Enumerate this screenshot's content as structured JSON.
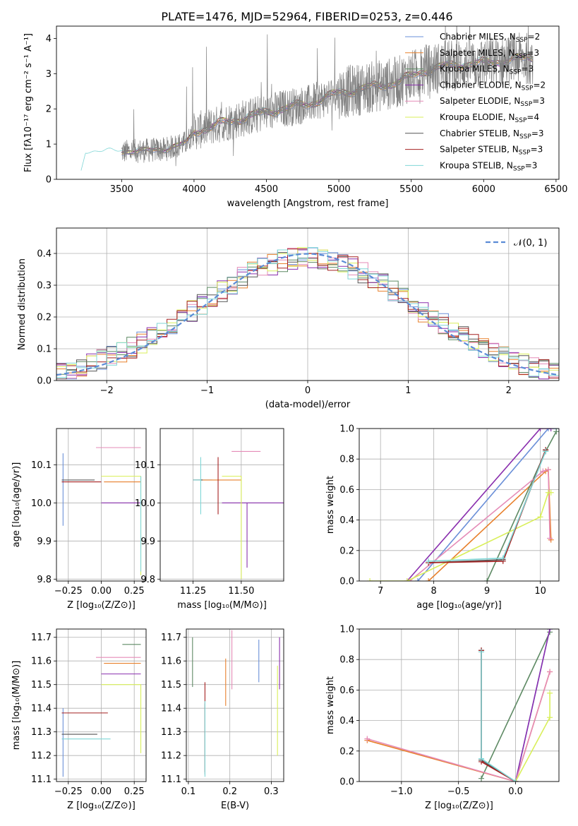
{
  "colors": [
    "#6a8fd8",
    "#e8802c",
    "#5e8a64",
    "#8a2fae",
    "#e58bb7",
    "#d9ef5a",
    "#555555",
    "#a52020",
    "#7fd6d6"
  ],
  "legend_labels": [
    "Chabrier MILES, N",
    "Salpeter MILES, N",
    "Kroupa MILES, N",
    "Chabrier ELODIE, N",
    "Salpeter ELODIE, N",
    "Kroupa ELODIE, N",
    "Chabrier STELIB, N",
    "Salpeter STELIB, N",
    "Kroupa STELIB, N"
  ],
  "chart_data": [
    {
      "type": "line",
      "title": "PLATE=1476, MJD=52964, FIBERID=0253, z=0.446",
      "xlabel": "wavelength [Angstrom, rest frame]",
      "ylabel": "Flux [fλ10⁻¹⁷ erg cm⁻² s⁻¹ A⁻¹]",
      "xlim": [
        3050,
        6520
      ],
      "ylim": [
        0,
        4.35
      ],
      "xticks": [
        "3500",
        "4000",
        "4500",
        "5000",
        "5500",
        "6000",
        "6500"
      ],
      "xtick_values": [
        3500,
        4000,
        4500,
        5000,
        5500,
        6000,
        6500
      ],
      "yticks": [
        "0",
        "1",
        "2",
        "3",
        "4"
      ],
      "ytick_values": [
        0,
        1,
        2,
        3,
        4
      ],
      "legend_subscript": "SSP",
      "legend": [
        {
          "nssp": "=2"
        },
        {
          "nssp": "=3"
        },
        {
          "nssp": "=3"
        },
        {
          "nssp": "=2"
        },
        {
          "nssp": "=3"
        },
        {
          "nssp": "=4"
        },
        {
          "nssp": "=3"
        },
        {
          "nssp": "=3"
        },
        {
          "nssp": "=3"
        }
      ],
      "continuum": {
        "x": [
          3210,
          3250,
          3500,
          3800,
          3950,
          4000,
          4200,
          4400,
          4600,
          4800,
          5000,
          5200,
          5400,
          5600,
          5800,
          6000,
          6200,
          6340
        ],
        "y": [
          0,
          0.75,
          0.78,
          0.85,
          1.05,
          1.35,
          1.6,
          1.8,
          2.0,
          2.15,
          2.45,
          2.6,
          2.75,
          3.1,
          3.25,
          3.3,
          3.4,
          3.45
        ]
      }
    },
    {
      "type": "step",
      "xlabel": "(data-model)/error",
      "ylabel": "Normed distribution",
      "xlim": [
        -2.5,
        2.5
      ],
      "ylim": [
        0,
        0.48
      ],
      "xticks": [
        "−2",
        "−1",
        "0",
        "1",
        "2"
      ],
      "xtick_values": [
        -2,
        -1,
        0,
        1,
        2
      ],
      "yticks": [
        "0.0",
        "0.1",
        "0.2",
        "0.3",
        "0.4"
      ],
      "ytick_values": [
        0,
        0.1,
        0.2,
        0.3,
        0.4
      ],
      "legend": "𝒩(0, 1)",
      "bin_width": 0.1
    },
    {
      "type": "errorbar",
      "xlabel": "Z [log₁₀(Z/Z⊙)]",
      "ylabel": "age  [log₁₀(age/yr)]",
      "xlim": [
        -0.34,
        0.34
      ],
      "ylim": [
        9.795,
        10.195
      ],
      "xticks": [
        "−0.25",
        "0.00",
        "0.25"
      ],
      "xtick_values": [
        -0.25,
        0,
        0.25
      ],
      "yticks": [
        "9.8",
        "9.9",
        "10.0",
        "10.1"
      ],
      "ytick_values": [
        9.8,
        9.9,
        10.0,
        10.1
      ],
      "points": [
        {
          "x": -0.29,
          "xerr": [
            0.0,
            0.0
          ],
          "y": 10.04,
          "yerr": [
            0.1,
            0.09
          ]
        },
        {
          "x": 0.16,
          "xerr": [
            0.14,
            0.14
          ],
          "y": 10.055,
          "yerr": [
            0.0,
            0.0
          ]
        },
        {
          "x": 0.3,
          "xerr": [
            0.14,
            0.0
          ],
          "y": 10.07,
          "yerr": [
            0.0,
            0.0
          ]
        },
        {
          "x": 0.3,
          "xerr": [
            0.3,
            0.0
          ],
          "y": 10.0,
          "yerr": [
            0.0,
            0.0
          ]
        },
        {
          "x": 0.16,
          "xerr": [
            0.2,
            0.14
          ],
          "y": 10.145,
          "yerr": [
            0.0,
            0.0
          ]
        },
        {
          "x": 0.3,
          "xerr": [
            0.3,
            0.0
          ],
          "y": 10.07,
          "yerr": [
            0.26,
            0.0
          ]
        },
        {
          "x": -0.25,
          "xerr": [
            0.05,
            0.2
          ],
          "y": 10.06,
          "yerr": [
            0.0,
            0.0
          ]
        },
        {
          "x": -0.25,
          "xerr": [
            0.05,
            0.25
          ],
          "y": 10.055,
          "yerr": [
            0.0,
            0.0
          ]
        },
        {
          "x": 0.3,
          "xerr": [
            0.0,
            0.0
          ],
          "y": 10.07,
          "yerr": [
            0.25,
            0.0
          ]
        }
      ]
    },
    {
      "type": "errorbar",
      "xlabel": "mass [log₁₀(M/M⊙)]",
      "ylabel": "",
      "xlim": [
        11.08,
        11.72
      ],
      "ylim": [
        9.795,
        10.195
      ],
      "xticks": [
        "11.25",
        "11.50"
      ],
      "xtick_values": [
        11.25,
        11.5
      ],
      "yticks": [
        "9.8",
        "9.9",
        "10.0",
        "10.1"
      ],
      "ytick_values": [
        9.8,
        9.9,
        10.0,
        10.1
      ],
      "points": [
        {
          "x": 11.3,
          "xerr": [
            0.05,
            0.05
          ],
          "y": 10.06,
          "yerr": [
            0.0,
            0.0
          ]
        },
        {
          "x": 11.35,
          "xerr": [
            0.1,
            0.15
          ],
          "y": 10.06,
          "yerr": [
            0.0,
            0.0
          ]
        },
        {
          "x": 11.55,
          "xerr": [
            0.0,
            0.0
          ],
          "y": 10.06,
          "yerr": [
            0.0,
            0.0
          ]
        },
        {
          "x": 11.53,
          "xerr": [
            0.13,
            0.2
          ],
          "y": 10.0,
          "yerr": [
            0.17,
            0.0
          ]
        },
        {
          "x": 11.6,
          "xerr": [
            0.15,
            0.0
          ],
          "y": 10.135,
          "yerr": [
            0.0,
            0.0
          ]
        },
        {
          "x": 11.5,
          "xerr": [
            0.1,
            0.0
          ],
          "y": 10.07,
          "yerr": [
            0.27,
            0.0
          ]
        },
        {
          "x": 11.3,
          "xerr": [
            0.05,
            0.0
          ],
          "y": 10.06,
          "yerr": [
            0.0,
            0.0
          ]
        },
        {
          "x": 11.38,
          "xerr": [
            0.0,
            0.0
          ],
          "y": 10.06,
          "yerr": [
            0.09,
            0.06
          ]
        },
        {
          "x": 11.29,
          "xerr": [
            0.04,
            0.0
          ],
          "y": 10.06,
          "yerr": [
            0.09,
            0.06
          ]
        }
      ]
    },
    {
      "type": "line",
      "xlabel": "age  [log₁₀(age/yr)]",
      "ylabel": "mass weight",
      "xlim": [
        6.6,
        10.35
      ],
      "ylim": [
        0,
        1.0
      ],
      "xticks": [
        "7",
        "8",
        "9",
        "10"
      ],
      "xtick_values": [
        7,
        8,
        9,
        10
      ],
      "yticks": [
        "0.0",
        "0.2",
        "0.4",
        "0.6",
        "0.8",
        "1.0"
      ],
      "ytick_values": [
        0,
        0.2,
        0.4,
        0.6,
        0.8,
        1.0
      ],
      "series": [
        {
          "x": [
            7.7,
            10.15,
            10.3
          ],
          "y": [
            0,
            1,
            1
          ]
        },
        {
          "x": [
            7.9,
            10.1,
            10.15,
            10.2
          ],
          "y": [
            0,
            0.72,
            0.73,
            0.27
          ]
        },
        {
          "x": [
            9.0,
            10.1,
            10.3
          ],
          "y": [
            0.0,
            0.85,
            0.98
          ]
        },
        {
          "x": [
            7.5,
            10.0,
            10.2
          ],
          "y": [
            0,
            1,
            1
          ]
        },
        {
          "x": [
            7.55,
            10.05,
            10.15,
            10.18
          ],
          "y": [
            0,
            0.72,
            0.73,
            0.28
          ]
        },
        {
          "x": [
            6.8,
            7.5,
            10.0,
            10.15,
            10.2
          ],
          "y": [
            0,
            0,
            0.42,
            0.58,
            0.58
          ]
        },
        {
          "x": [
            7.9,
            9.3,
            10.1
          ],
          "y": [
            0.12,
            0.14,
            0.86
          ]
        },
        {
          "x": [
            7.9,
            9.3,
            10.1
          ],
          "y": [
            0.12,
            0.13,
            0.86
          ]
        },
        {
          "x": [
            7.9,
            9.3,
            10.1
          ],
          "y": [
            0.13,
            0.15,
            0.85
          ]
        }
      ]
    },
    {
      "type": "errorbar",
      "xlabel": "Z [log₁₀(Z/Z⊙)]",
      "ylabel": "mass [log₁₀(M/M⊙)]",
      "xlim": [
        -0.34,
        0.34
      ],
      "ylim": [
        11.09,
        11.735
      ],
      "xticks": [
        "−0.25",
        "0.00",
        "0.25"
      ],
      "xtick_values": [
        -0.25,
        0,
        0.25
      ],
      "yticks": [
        "11.1",
        "11.2",
        "11.3",
        "11.4",
        "11.5",
        "11.6",
        "11.7"
      ],
      "ytick_values": [
        11.1,
        11.2,
        11.3,
        11.4,
        11.5,
        11.6,
        11.7
      ],
      "points": [
        {
          "x": -0.29,
          "xerr": [
            0,
            0
          ],
          "y": 11.28,
          "yerr": [
            0.17,
            0.12
          ]
        },
        {
          "x": 0.16,
          "xerr": [
            0.14,
            0.14
          ],
          "y": 11.59,
          "yerr": [
            0.0,
            0.0
          ]
        },
        {
          "x": 0.3,
          "xerr": [
            0.14,
            0.0
          ],
          "y": 11.67,
          "yerr": [
            0.0,
            0.0
          ]
        },
        {
          "x": 0.3,
          "xerr": [
            0.3,
            0.0
          ],
          "y": 11.545,
          "yerr": [
            0.0,
            0.0
          ]
        },
        {
          "x": 0.16,
          "xerr": [
            0.2,
            0.14
          ],
          "y": 11.615,
          "yerr": [
            0.0,
            0.0
          ]
        },
        {
          "x": 0.3,
          "xerr": [
            0.3,
            0.0
          ],
          "y": 11.5,
          "yerr": [
            0.29,
            0.0
          ]
        },
        {
          "x": -0.25,
          "xerr": [
            0.05,
            0.22
          ],
          "y": 11.29,
          "yerr": [
            0.0,
            0.0
          ]
        },
        {
          "x": -0.25,
          "xerr": [
            0.05,
            0.3
          ],
          "y": 11.38,
          "yerr": [
            0.0,
            0.0
          ]
        },
        {
          "x": -0.25,
          "xerr": [
            0.05,
            0.32
          ],
          "y": 11.27,
          "yerr": [
            0.0,
            0.0
          ]
        }
      ]
    },
    {
      "type": "errorbar",
      "xlabel": "E(B-V)",
      "ylabel": "",
      "xlim": [
        0.095,
        0.33
      ],
      "ylim": [
        11.09,
        11.735
      ],
      "xticks": [
        "0.1",
        "0.2",
        "0.3"
      ],
      "xtick_values": [
        0.1,
        0.2,
        0.3
      ],
      "yticks": [
        "11.1",
        "11.2",
        "11.3",
        "11.4",
        "11.5",
        "11.6",
        "11.7"
      ],
      "ytick_values": [
        11.1,
        11.2,
        11.3,
        11.4,
        11.5,
        11.6,
        11.7
      ],
      "points": [
        {
          "x": 0.27,
          "xerr": [
            0,
            0
          ],
          "y": 11.6,
          "yerr": [
            0.09,
            0.09
          ]
        },
        {
          "x": 0.19,
          "xerr": [
            0,
            0
          ],
          "y": 11.5,
          "yerr": [
            0.09,
            0.11
          ]
        },
        {
          "x": 0.11,
          "xerr": [
            0,
            0
          ],
          "y": 11.6,
          "yerr": [
            0.11,
            0.1
          ]
        },
        {
          "x": 0.32,
          "xerr": [
            0,
            0
          ],
          "y": 11.6,
          "yerr": [
            0.12,
            0.1
          ]
        },
        {
          "x": 0.205,
          "xerr": [
            0,
            0
          ],
          "y": 11.6,
          "yerr": [
            0.12,
            0.13
          ]
        },
        {
          "x": 0.315,
          "xerr": [
            0,
            0
          ],
          "y": 11.4,
          "yerr": [
            0.2,
            0.18
          ]
        },
        {
          "x": 0.14,
          "xerr": [
            0,
            0
          ],
          "y": 11.28,
          "yerr": [
            0.16,
            0.14
          ]
        },
        {
          "x": 0.14,
          "xerr": [
            0,
            0
          ],
          "y": 11.38,
          "yerr": [
            0.25,
            0.13
          ]
        },
        {
          "x": 0.14,
          "xerr": [
            0,
            0
          ],
          "y": 11.27,
          "yerr": [
            0.16,
            0.16
          ]
        }
      ]
    },
    {
      "type": "line",
      "xlabel": "Z [log₁₀(Z/Z⊙)]",
      "ylabel": "mass weight",
      "xlim": [
        -1.37,
        0.38
      ],
      "ylim": [
        0,
        1.0
      ],
      "xticks": [
        "−1.0",
        "−0.5",
        "0.0"
      ],
      "xtick_values": [
        -1.0,
        -0.5,
        0.0
      ],
      "yticks": [
        "0.0",
        "0.2",
        "0.4",
        "0.6",
        "0.8",
        "1.0"
      ],
      "ytick_values": [
        0,
        0.2,
        0.4,
        0.6,
        0.8,
        1.0
      ],
      "series": [
        {
          "x": [
            0.0,
            0.3
          ],
          "y": [
            0.0,
            1.0
          ]
        },
        {
          "x": [
            -1.3,
            0.0,
            0.3
          ],
          "y": [
            0.27,
            0.0,
            0.72
          ]
        },
        {
          "x": [
            -0.3,
            0.3
          ],
          "y": [
            0.02,
            0.98
          ]
        },
        {
          "x": [
            0.0,
            0.3
          ],
          "y": [
            0.0,
            1.0
          ]
        },
        {
          "x": [
            -1.3,
            0.0,
            0.3
          ],
          "y": [
            0.28,
            0.0,
            0.72
          ]
        },
        {
          "x": [
            0.0,
            0.3,
            0.3
          ],
          "y": [
            0.0,
            0.42,
            0.58
          ]
        },
        {
          "x": [
            -0.3,
            -0.3,
            0.0
          ],
          "y": [
            0.86,
            0.14,
            0.0
          ]
        },
        {
          "x": [
            -0.3,
            -0.3,
            0.0
          ],
          "y": [
            0.86,
            0.13,
            0.0
          ]
        },
        {
          "x": [
            -0.3,
            -0.3,
            0.0
          ],
          "y": [
            0.85,
            0.15,
            0.0
          ]
        }
      ]
    }
  ]
}
